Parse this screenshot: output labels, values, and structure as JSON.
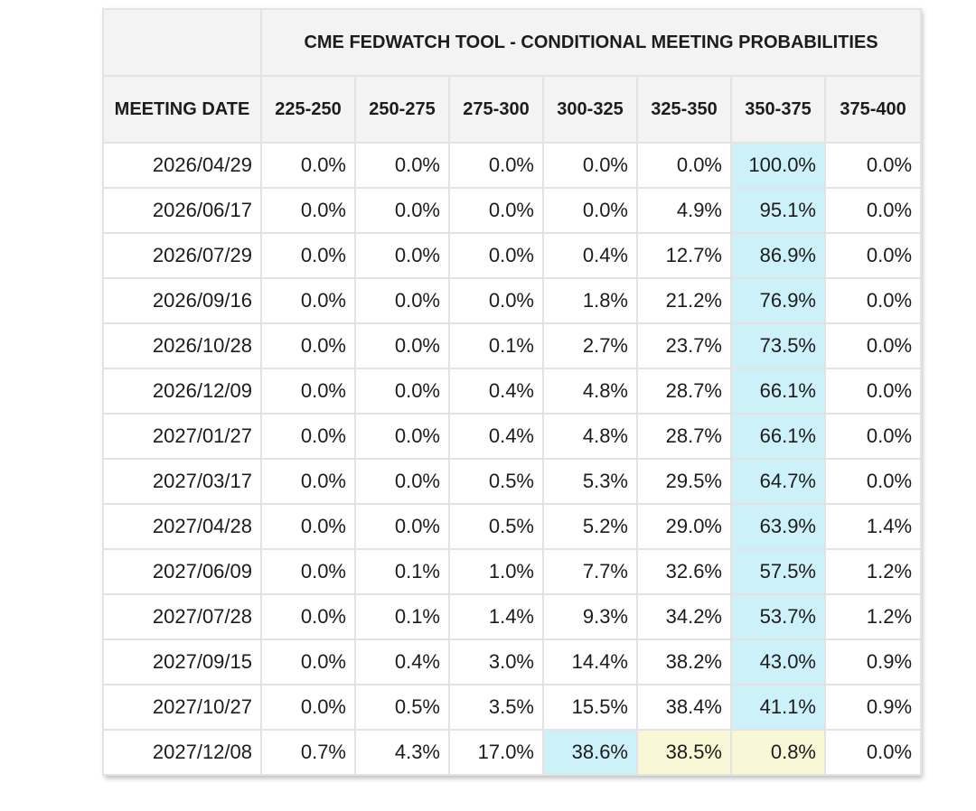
{
  "table": {
    "title": "CME FEDWATCH TOOL - CONDITIONAL MEETING PROBABILITIES",
    "date_header": "MEETING DATE",
    "columns": [
      "225-250",
      "250-275",
      "275-300",
      "300-325",
      "325-350",
      "350-375",
      "375-400"
    ],
    "highlight_colors": {
      "blue": "#cdf1f9",
      "yellow": "#f8f8d6",
      "header_bg": "#f3f3f3"
    },
    "rows": [
      {
        "date": "2026/04/29",
        "values": [
          "0.0%",
          "0.0%",
          "0.0%",
          "0.0%",
          "0.0%",
          "100.0%",
          "0.0%"
        ],
        "hl": [
          "",
          "",
          "",
          "",
          "",
          "blue",
          ""
        ]
      },
      {
        "date": "2026/06/17",
        "values": [
          "0.0%",
          "0.0%",
          "0.0%",
          "0.0%",
          "4.9%",
          "95.1%",
          "0.0%"
        ],
        "hl": [
          "",
          "",
          "",
          "",
          "",
          "blue",
          ""
        ]
      },
      {
        "date": "2026/07/29",
        "values": [
          "0.0%",
          "0.0%",
          "0.0%",
          "0.4%",
          "12.7%",
          "86.9%",
          "0.0%"
        ],
        "hl": [
          "",
          "",
          "",
          "",
          "",
          "blue",
          ""
        ]
      },
      {
        "date": "2026/09/16",
        "values": [
          "0.0%",
          "0.0%",
          "0.0%",
          "1.8%",
          "21.2%",
          "76.9%",
          "0.0%"
        ],
        "hl": [
          "",
          "",
          "",
          "",
          "",
          "blue",
          ""
        ]
      },
      {
        "date": "2026/10/28",
        "values": [
          "0.0%",
          "0.0%",
          "0.1%",
          "2.7%",
          "23.7%",
          "73.5%",
          "0.0%"
        ],
        "hl": [
          "",
          "",
          "",
          "",
          "",
          "blue",
          ""
        ]
      },
      {
        "date": "2026/12/09",
        "values": [
          "0.0%",
          "0.0%",
          "0.4%",
          "4.8%",
          "28.7%",
          "66.1%",
          "0.0%"
        ],
        "hl": [
          "",
          "",
          "",
          "",
          "",
          "blue",
          ""
        ]
      },
      {
        "date": "2027/01/27",
        "values": [
          "0.0%",
          "0.0%",
          "0.4%",
          "4.8%",
          "28.7%",
          "66.1%",
          "0.0%"
        ],
        "hl": [
          "",
          "",
          "",
          "",
          "",
          "blue",
          ""
        ]
      },
      {
        "date": "2027/03/17",
        "values": [
          "0.0%",
          "0.0%",
          "0.5%",
          "5.3%",
          "29.5%",
          "64.7%",
          "0.0%"
        ],
        "hl": [
          "",
          "",
          "",
          "",
          "",
          "blue",
          ""
        ]
      },
      {
        "date": "2027/04/28",
        "values": [
          "0.0%",
          "0.0%",
          "0.5%",
          "5.2%",
          "29.0%",
          "63.9%",
          "1.4%"
        ],
        "hl": [
          "",
          "",
          "",
          "",
          "",
          "blue",
          ""
        ]
      },
      {
        "date": "2027/06/09",
        "values": [
          "0.0%",
          "0.1%",
          "1.0%",
          "7.7%",
          "32.6%",
          "57.5%",
          "1.2%"
        ],
        "hl": [
          "",
          "",
          "",
          "",
          "",
          "blue",
          ""
        ]
      },
      {
        "date": "2027/07/28",
        "values": [
          "0.0%",
          "0.1%",
          "1.4%",
          "9.3%",
          "34.2%",
          "53.7%",
          "1.2%"
        ],
        "hl": [
          "",
          "",
          "",
          "",
          "",
          "blue",
          ""
        ]
      },
      {
        "date": "2027/09/15",
        "values": [
          "0.0%",
          "0.4%",
          "3.0%",
          "14.4%",
          "38.2%",
          "43.0%",
          "0.9%"
        ],
        "hl": [
          "",
          "",
          "",
          "",
          "",
          "blue",
          ""
        ]
      },
      {
        "date": "2027/10/27",
        "values": [
          "0.0%",
          "0.5%",
          "3.5%",
          "15.5%",
          "38.4%",
          "41.1%",
          "0.9%"
        ],
        "hl": [
          "",
          "",
          "",
          "",
          "",
          "blue",
          ""
        ]
      },
      {
        "date": "2027/12/08",
        "values": [
          "0.7%",
          "4.3%",
          "17.0%",
          "38.6%",
          "38.5%",
          "0.8%",
          "0.0%"
        ],
        "hl": [
          "",
          "",
          "",
          "blue",
          "yellow",
          "yellow",
          ""
        ]
      }
    ]
  }
}
